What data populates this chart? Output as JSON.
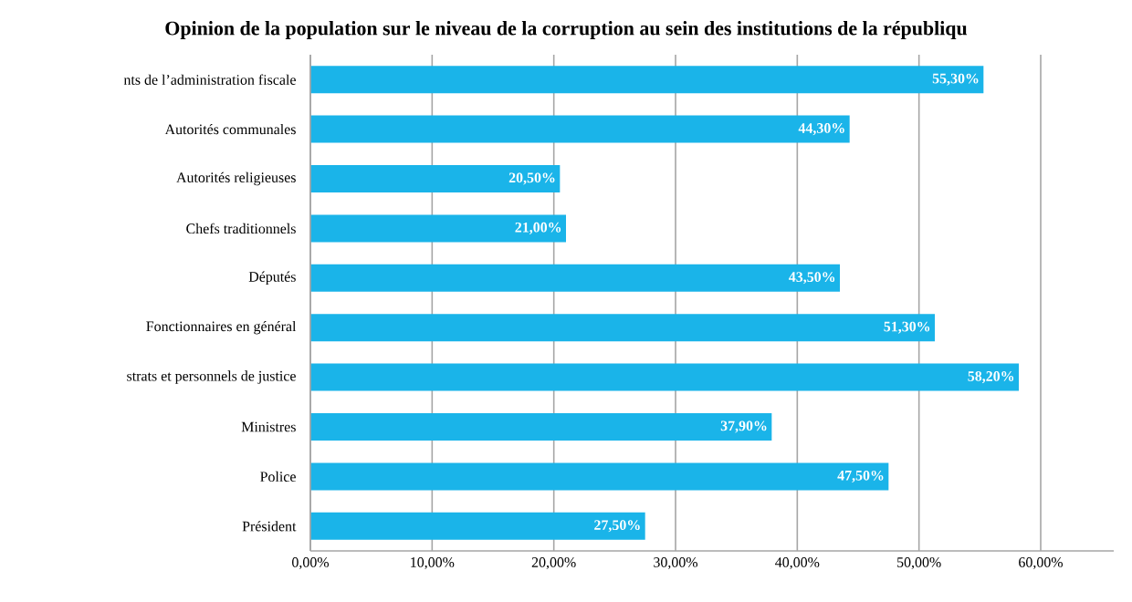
{
  "chart_data": {
    "type": "bar",
    "orientation": "horizontal",
    "title": "Opinion de la population sur le niveau de la corruption au sein des institutions de la républiqu",
    "categories": [
      "nts de l’administration fiscale",
      "Autorités communales",
      "Autorités religieuses",
      "Chefs traditionnels",
      "Députés",
      "Fonctionnaires en général",
      "strats et personnels de justice",
      "Ministres",
      "Police",
      "Président"
    ],
    "values": [
      55.3,
      44.3,
      20.5,
      21.0,
      43.5,
      51.3,
      58.2,
      37.9,
      47.5,
      27.5
    ],
    "value_labels": [
      "55,30%",
      "44,30%",
      "20,50%",
      "21,00%",
      "43,50%",
      "51,30%",
      "58,20%",
      "37,90%",
      "47,50%",
      "27,50%"
    ],
    "color": "#1ab4e9",
    "xlim": [
      0,
      66
    ],
    "xticks": [
      {
        "value": 0,
        "label": "0,00%"
      },
      {
        "value": 10,
        "label": "10,00%"
      },
      {
        "value": 20,
        "label": "20,00%"
      },
      {
        "value": 30,
        "label": "30,00%"
      },
      {
        "value": 40,
        "label": "40,00%"
      },
      {
        "value": 50,
        "label": "50,00%"
      },
      {
        "value": 60,
        "label": "60,00%"
      }
    ],
    "grid": "x"
  }
}
